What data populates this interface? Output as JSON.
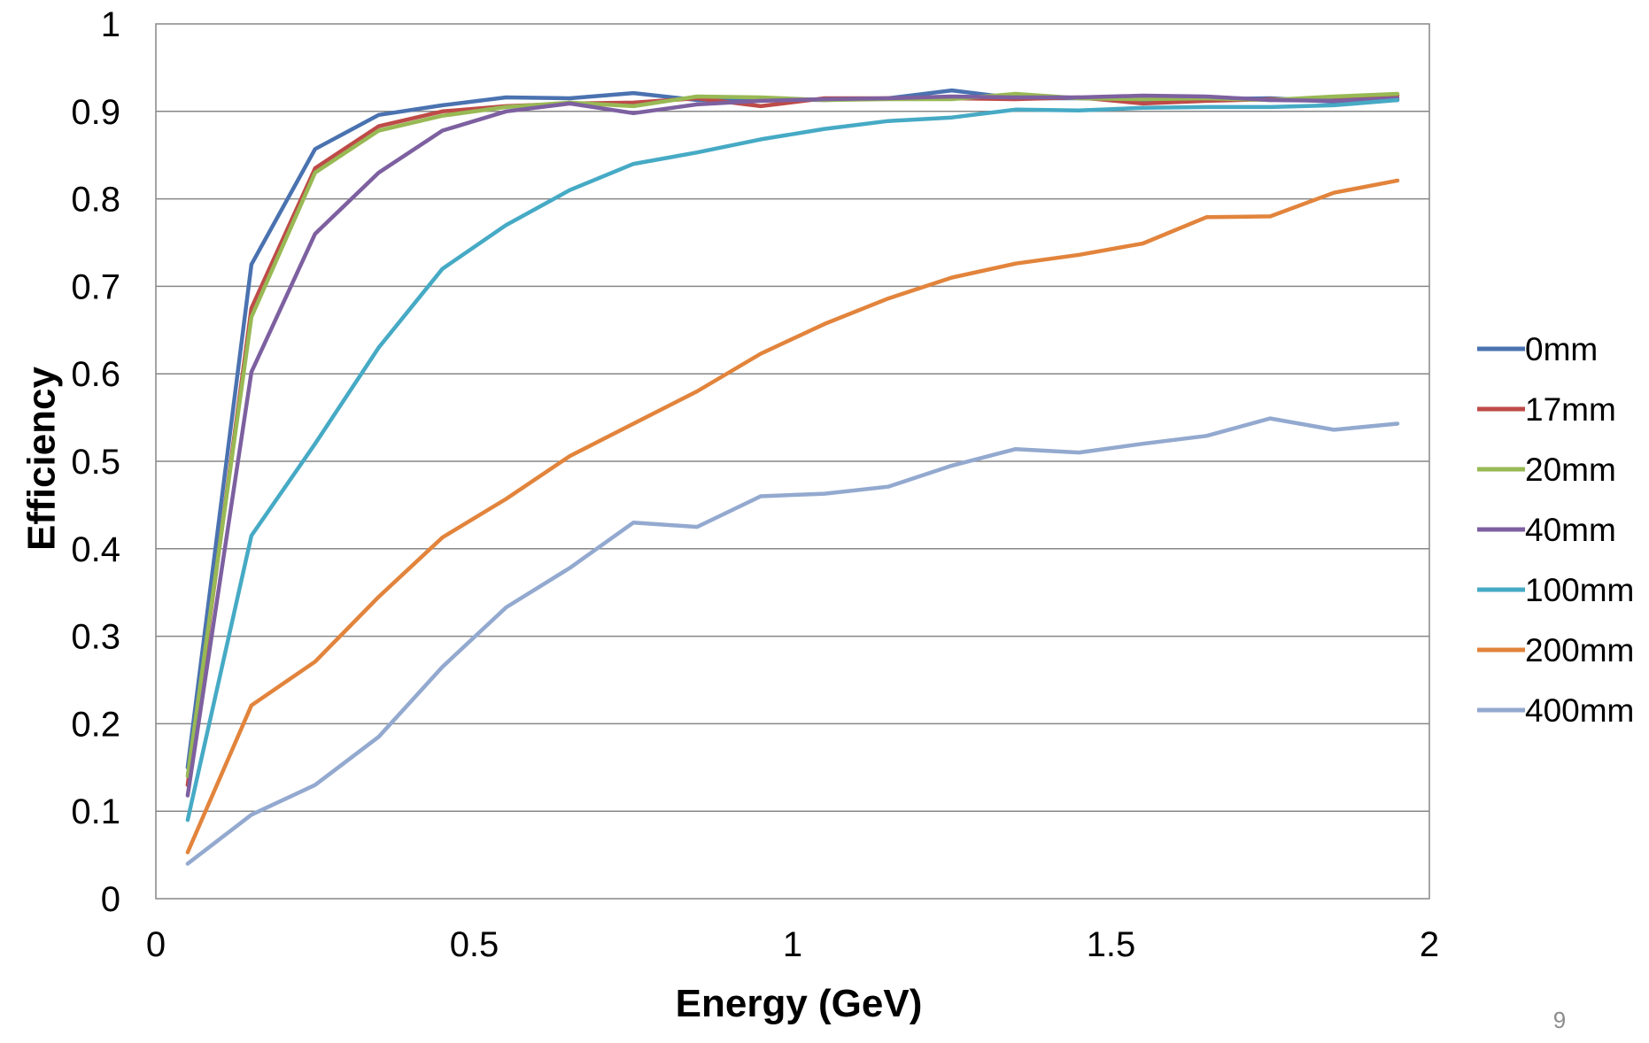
{
  "chart_data": {
    "type": "line",
    "title": "",
    "xlabel": "Energy (GeV)",
    "ylabel": "Efficiency",
    "xlim": [
      0,
      2
    ],
    "ylim": [
      0,
      1
    ],
    "x_ticks": [
      "0",
      "0.5",
      "1",
      "1.5",
      "2"
    ],
    "y_ticks": [
      "0",
      "0.1",
      "0.2",
      "0.3",
      "0.4",
      "0.5",
      "0.6",
      "0.7",
      "0.8",
      "0.9",
      "1"
    ],
    "x_tick_values": [
      0,
      0.5,
      1,
      1.5,
      2
    ],
    "y_tick_values": [
      0,
      0.1,
      0.2,
      0.3,
      0.4,
      0.5,
      0.6,
      0.7,
      0.8,
      0.9,
      1
    ],
    "grid": "horizontal",
    "legend_position": "right",
    "x": [
      0.05,
      0.15,
      0.25,
      0.35,
      0.45,
      0.55,
      0.65,
      0.75,
      0.85,
      0.95,
      1.05,
      1.15,
      1.25,
      1.35,
      1.45,
      1.55,
      1.65,
      1.75,
      1.85,
      1.95
    ],
    "series": [
      {
        "name": "0mm",
        "color": "#4a72b0",
        "values": [
          0.15,
          0.725,
          0.857,
          0.896,
          0.907,
          0.916,
          0.915,
          0.921,
          0.913,
          0.914,
          0.913,
          0.915,
          0.924,
          0.915,
          0.915,
          0.913,
          0.914,
          0.915,
          0.911,
          0.913
        ]
      },
      {
        "name": "17mm",
        "color": "#be4b48",
        "values": [
          0.13,
          0.675,
          0.835,
          0.883,
          0.9,
          0.906,
          0.909,
          0.91,
          0.915,
          0.906,
          0.915,
          0.915,
          0.915,
          0.914,
          0.916,
          0.909,
          0.912,
          0.914,
          0.913,
          0.918
        ]
      },
      {
        "name": "20mm",
        "color": "#98b954",
        "values": [
          0.14,
          0.665,
          0.83,
          0.878,
          0.895,
          0.905,
          0.91,
          0.906,
          0.917,
          0.916,
          0.913,
          0.914,
          0.914,
          0.92,
          0.915,
          0.914,
          0.915,
          0.913,
          0.917,
          0.92
        ]
      },
      {
        "name": "40mm",
        "color": "#7d60a0",
        "values": [
          0.118,
          0.602,
          0.76,
          0.83,
          0.878,
          0.9,
          0.909,
          0.898,
          0.908,
          0.912,
          0.914,
          0.915,
          0.917,
          0.916,
          0.916,
          0.918,
          0.917,
          0.913,
          0.912,
          0.915
        ]
      },
      {
        "name": "100mm",
        "color": "#46aac5",
        "values": [
          0.09,
          0.415,
          0.52,
          0.63,
          0.72,
          0.77,
          0.81,
          0.84,
          0.853,
          0.868,
          0.88,
          0.889,
          0.893,
          0.902,
          0.901,
          0.904,
          0.905,
          0.905,
          0.907,
          0.913
        ]
      },
      {
        "name": "200mm",
        "color": "#e2843c",
        "values": [
          0.053,
          0.221,
          0.271,
          0.345,
          0.413,
          0.457,
          0.506,
          0.543,
          0.58,
          0.623,
          0.657,
          0.686,
          0.71,
          0.726,
          0.736,
          0.749,
          0.779,
          0.78,
          0.807,
          0.821
        ]
      },
      {
        "name": "400mm",
        "color": "#93a9cf",
        "values": [
          0.04,
          0.096,
          0.13,
          0.185,
          0.265,
          0.333,
          0.378,
          0.43,
          0.425,
          0.46,
          0.463,
          0.471,
          0.495,
          0.514,
          0.51,
          0.52,
          0.529,
          0.549,
          0.536,
          0.543
        ]
      }
    ]
  },
  "slide": {
    "page_number": "9"
  }
}
